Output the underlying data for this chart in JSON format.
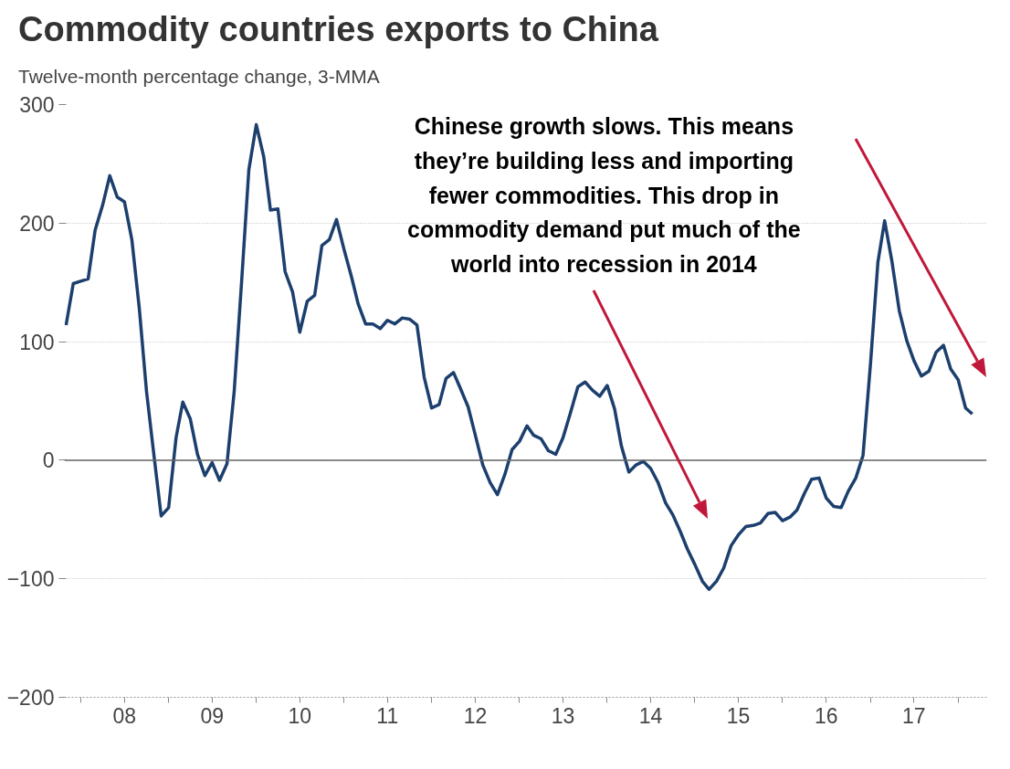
{
  "chart_data": {
    "type": "line",
    "title": "Commodity countries exports to China",
    "subtitle": "Twelve-month percentage change, 3-MMA",
    "annotations": [
      "Chinese growth slows. This means they’re building less and importing fewer commodities. This drop in commodity demand put much of the world into recession in 2014"
    ],
    "x": [
      "2007-11",
      "2007-12",
      "2008-01",
      "2008-02",
      "2008-03",
      "2008-04",
      "2008-05",
      "2008-06",
      "2008-07",
      "2008-08",
      "2008-09",
      "2008-10",
      "2008-11",
      "2008-12",
      "2009-01",
      "2009-02",
      "2009-03",
      "2009-04",
      "2009-05",
      "2009-06",
      "2009-07",
      "2009-08",
      "2009-09",
      "2009-10",
      "2009-11",
      "2009-12",
      "2010-01",
      "2010-02",
      "2010-03",
      "2010-04",
      "2010-05",
      "2010-06",
      "2010-07",
      "2010-08",
      "2010-09",
      "2010-10",
      "2010-11",
      "2010-12",
      "2011-01",
      "2011-02",
      "2011-03",
      "2011-04",
      "2011-05",
      "2011-06",
      "2011-07",
      "2011-08",
      "2011-09",
      "2011-10",
      "2011-11",
      "2011-12",
      "2012-01",
      "2012-02",
      "2012-03",
      "2012-04",
      "2012-05",
      "2012-06",
      "2012-07",
      "2012-08",
      "2012-09",
      "2012-10",
      "2012-11",
      "2012-12",
      "2013-01",
      "2013-02",
      "2013-03",
      "2013-04",
      "2013-05",
      "2013-06",
      "2013-07",
      "2013-08",
      "2013-09",
      "2013-10",
      "2013-11",
      "2013-12",
      "2014-01",
      "2014-02",
      "2014-03",
      "2014-04",
      "2014-05",
      "2014-06",
      "2014-07",
      "2014-08",
      "2014-09",
      "2014-10",
      "2014-11",
      "2014-12",
      "2015-01",
      "2015-02",
      "2015-03",
      "2015-04",
      "2015-05",
      "2015-06",
      "2015-07",
      "2015-08",
      "2015-09",
      "2015-10",
      "2015-11",
      "2015-12",
      "2016-01",
      "2016-02",
      "2016-03",
      "2016-04",
      "2016-05",
      "2016-06",
      "2016-07",
      "2016-08",
      "2016-09",
      "2016-10",
      "2016-11",
      "2016-12",
      "2017-01",
      "2017-02",
      "2017-03",
      "2017-04",
      "2017-05",
      "2017-06",
      "2017-07",
      "2017-08",
      "2017-09",
      "2017-10",
      "2017-11",
      "2017-12",
      "2018-01",
      "2018-02",
      "2018-03"
    ],
    "series": [
      {
        "color": "#1c3f6e",
        "values": [
          114,
          149,
          151,
          153,
          194,
          215,
          240,
          222,
          218,
          186,
          128,
          58,
          4,
          -47,
          -40,
          19,
          49,
          35,
          5,
          -13,
          -2,
          -17,
          -3,
          58,
          151,
          245,
          283,
          256,
          211,
          212,
          159,
          142,
          108,
          134,
          139,
          181,
          186,
          203,
          178,
          155,
          132,
          115,
          115,
          111,
          118,
          115,
          120,
          119,
          114,
          70,
          44,
          47,
          69,
          74,
          60,
          45,
          21,
          -4,
          -19,
          -29,
          -12,
          9,
          16,
          29,
          21,
          18,
          8,
          5,
          19,
          40,
          62,
          66,
          59,
          54,
          63,
          43,
          12,
          -10,
          -4,
          -1,
          -7,
          -19,
          -36,
          -46,
          -60,
          -75,
          -88,
          -102,
          -109,
          -102,
          -91,
          -72,
          -63,
          -56,
          -55,
          -53,
          -45,
          -44,
          -51,
          -48,
          -42,
          -28,
          -16,
          -15,
          -32,
          -39,
          -40,
          -26,
          -15,
          4,
          81,
          167,
          202,
          167,
          126,
          101,
          84,
          71,
          75,
          91,
          97,
          77,
          68,
          44,
          39
        ]
      }
    ],
    "xlim": [
      "2007-10-25",
      "2018-04-30"
    ],
    "ylim": [
      -200,
      300
    ],
    "yticks": [
      -200,
      -100,
      0,
      100,
      200,
      300
    ],
    "xticks": [
      {
        "value": "2008-01-01",
        "label": null
      },
      {
        "value": "2008-07-01",
        "label": "08"
      },
      {
        "value": "2009-01-01",
        "label": null
      },
      {
        "value": "2009-07-01",
        "label": "09"
      },
      {
        "value": "2010-01-01",
        "label": null
      },
      {
        "value": "2010-07-01",
        "label": "10"
      },
      {
        "value": "2011-01-01",
        "label": null
      },
      {
        "value": "2011-07-01",
        "label": "11"
      },
      {
        "value": "2012-01-01",
        "label": null
      },
      {
        "value": "2012-07-01",
        "label": "12"
      },
      {
        "value": "2013-01-01",
        "label": null
      },
      {
        "value": "2013-07-01",
        "label": "13"
      },
      {
        "value": "2014-01-01",
        "label": null
      },
      {
        "value": "2014-07-01",
        "label": "14"
      },
      {
        "value": "2015-01-01",
        "label": null
      },
      {
        "value": "2015-07-01",
        "label": "15"
      },
      {
        "value": "2016-01-01",
        "label": null
      },
      {
        "value": "2016-07-01",
        "label": "16"
      },
      {
        "value": "2017-01-01",
        "label": null
      },
      {
        "value": "2017-07-01",
        "label": "17"
      },
      {
        "value": "2018-01-01",
        "label": null
      }
    ],
    "ref_lines": [
      {
        "axis": "y",
        "value": 0,
        "color": "#666666"
      }
    ],
    "grid": "y",
    "marker": "none",
    "line_style": "solid"
  }
}
